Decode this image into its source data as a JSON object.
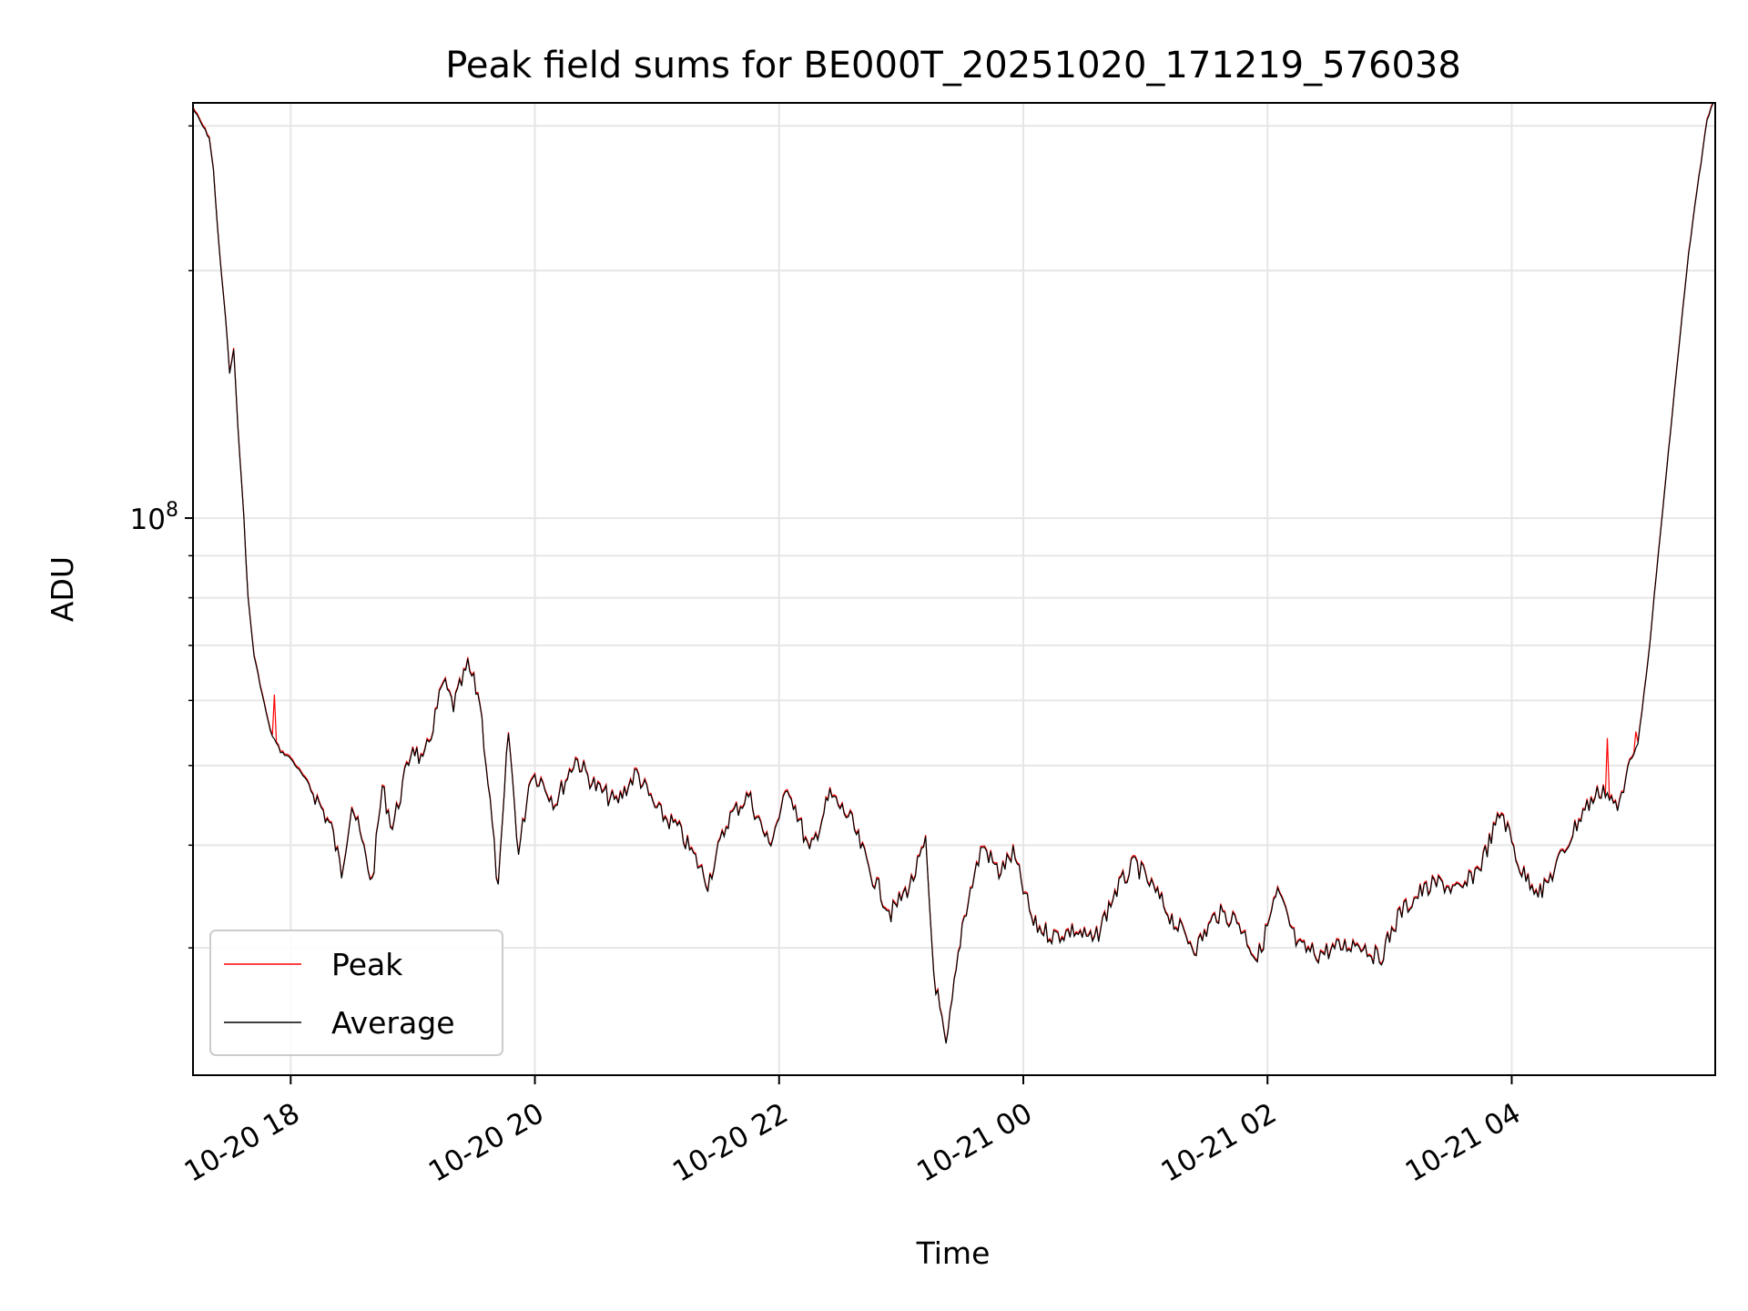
{
  "chart_data": {
    "type": "line",
    "title": "Peak field sums for BE000T_20251020_171219_576038",
    "xlabel": "Time",
    "ylabel": "ADU",
    "y_scale": "log",
    "ylim": [
      21000000,
      320000000
    ],
    "xlim": [
      "2025-10-20 17:12",
      "2025-10-21 05:40"
    ],
    "x_ticks": [
      "10-20 18",
      "10-20 20",
      "10-20 22",
      "10-21 00",
      "10-21 02",
      "10-21 04"
    ],
    "x_tick_times": [
      "2025-10-20 18:00",
      "2025-10-20 20:00",
      "2025-10-20 22:00",
      "2025-10-21 00:00",
      "2025-10-21 02:00",
      "2025-10-21 04:00"
    ],
    "y_major_ticks": [
      {
        "value": 100000000,
        "base": "10",
        "exp": "8"
      }
    ],
    "y_minor_ticks": [
      30000000,
      40000000,
      50000000,
      60000000,
      70000000,
      80000000,
      90000000,
      200000000,
      300000000
    ],
    "grid": true,
    "legend_position": "lower-left",
    "series": [
      {
        "name": "Peak",
        "color": "#ff0000",
        "linewidth": 1.2
      },
      {
        "name": "Average",
        "color": "#000000",
        "linewidth": 1.2
      }
    ],
    "x": [
      "2025-10-20 17:12",
      "2025-10-20 17:20",
      "2025-10-20 17:22",
      "2025-10-20 17:25",
      "2025-10-20 17:28",
      "2025-10-20 17:30",
      "2025-10-20 17:32",
      "2025-10-20 17:34",
      "2025-10-20 17:37",
      "2025-10-20 17:39",
      "2025-10-20 17:42",
      "2025-10-20 17:46",
      "2025-10-20 17:50",
      "2025-10-20 17:55",
      "2025-10-20 18:00",
      "2025-10-20 18:10",
      "2025-10-20 18:20",
      "2025-10-20 18:25",
      "2025-10-20 18:30",
      "2025-10-20 18:40",
      "2025-10-20 18:45",
      "2025-10-20 18:50",
      "2025-10-20 19:00",
      "2025-10-20 19:05",
      "2025-10-20 19:10",
      "2025-10-20 19:15",
      "2025-10-20 19:20",
      "2025-10-20 19:27",
      "2025-10-20 19:33",
      "2025-10-20 19:38",
      "2025-10-20 19:42",
      "2025-10-20 19:47",
      "2025-10-20 19:52",
      "2025-10-20 19:58",
      "2025-10-20 20:03",
      "2025-10-20 20:10",
      "2025-10-20 20:20",
      "2025-10-20 20:30",
      "2025-10-20 20:40",
      "2025-10-20 20:50",
      "2025-10-20 21:00",
      "2025-10-20 21:10",
      "2025-10-20 21:20",
      "2025-10-20 21:25",
      "2025-10-20 21:35",
      "2025-10-20 21:45",
      "2025-10-20 21:55",
      "2025-10-20 22:05",
      "2025-10-20 22:15",
      "2025-10-20 22:25",
      "2025-10-20 22:35",
      "2025-10-20 22:45",
      "2025-10-20 22:55",
      "2025-10-20 23:05",
      "2025-10-20 23:12",
      "2025-10-20 23:16",
      "2025-10-20 23:22",
      "2025-10-20 23:30",
      "2025-10-20 23:35",
      "2025-10-20 23:40",
      "2025-10-20 23:48",
      "2025-10-20 23:55",
      "2025-10-21 00:05",
      "2025-10-21 00:15",
      "2025-10-21 00:25",
      "2025-10-21 00:35",
      "2025-10-21 00:45",
      "2025-10-21 00:55",
      "2025-10-21 01:05",
      "2025-10-21 01:15",
      "2025-10-21 01:25",
      "2025-10-21 01:35",
      "2025-10-21 01:45",
      "2025-10-21 01:55",
      "2025-10-21 02:05",
      "2025-10-21 02:15",
      "2025-10-21 02:25",
      "2025-10-21 02:35",
      "2025-10-21 02:45",
      "2025-10-21 02:55",
      "2025-10-21 03:05",
      "2025-10-21 03:15",
      "2025-10-21 03:25",
      "2025-10-21 03:35",
      "2025-10-21 03:45",
      "2025-10-21 03:55",
      "2025-10-21 04:05",
      "2025-10-21 04:15",
      "2025-10-21 04:25",
      "2025-10-21 04:35",
      "2025-10-21 04:45",
      "2025-10-21 04:52",
      "2025-10-21 04:57",
      "2025-10-21 05:02",
      "2025-10-21 05:07",
      "2025-10-21 05:12",
      "2025-10-21 05:17",
      "2025-10-21 05:22",
      "2025-10-21 05:27",
      "2025-10-21 05:32",
      "2025-10-21 05:36",
      "2025-10-21 05:39"
    ],
    "values": [
      315000000,
      290000000,
      265000000,
      210000000,
      175000000,
      150000000,
      160000000,
      130000000,
      100000000,
      80000000,
      68000000,
      61000000,
      55000000,
      52000000,
      51000000,
      47000000,
      42000000,
      37000000,
      45000000,
      36000000,
      47000000,
      42000000,
      53000000,
      50000000,
      56000000,
      63000000,
      59000000,
      66000000,
      60000000,
      45000000,
      35000000,
      55000000,
      39000000,
      49000000,
      48000000,
      45000000,
      51000000,
      47000000,
      45000000,
      49000000,
      44000000,
      42000000,
      38000000,
      36000000,
      43000000,
      46000000,
      40000000,
      47000000,
      39000000,
      46000000,
      43000000,
      37000000,
      33000000,
      36000000,
      40000000,
      28000000,
      22500000,
      32000000,
      36000000,
      40000000,
      37000000,
      39000000,
      32000000,
      31000000,
      31500000,
      30500000,
      35000000,
      38000000,
      35000000,
      32000000,
      30000000,
      33000000,
      32500000,
      29000000,
      35000000,
      30000000,
      29500000,
      30000000,
      30500000,
      29000000,
      33000000,
      35000000,
      36000000,
      35000000,
      38000000,
      44000000,
      37000000,
      35000000,
      39000000,
      44000000,
      47000000,
      44000000,
      50000000,
      53000000,
      67000000,
      90000000,
      120000000,
      160000000,
      210000000,
      260000000,
      305000000,
      320000000
    ],
    "peak_spikes": [
      [
        "2025-10-20 17:52",
        61000000
      ],
      [
        "2025-10-21 04:47",
        54000000
      ],
      [
        "2025-10-21 05:01",
        55000000
      ]
    ]
  }
}
